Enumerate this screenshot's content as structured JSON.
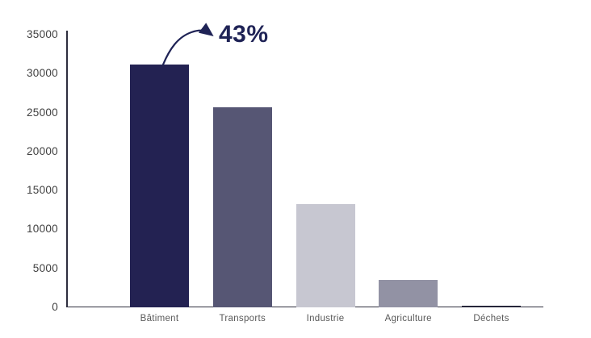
{
  "chart_data": {
    "type": "bar",
    "title": "",
    "xlabel": "",
    "ylabel": "",
    "categories": [
      "Bâtiment",
      "Transports",
      "Industrie",
      "Agriculture",
      "Déchets"
    ],
    "values": [
      31200,
      25700,
      13300,
      3500,
      250
    ],
    "bar_colors": [
      "#232252",
      "#565674",
      "#c7c7d1",
      "#9292a4",
      "#26263a"
    ],
    "ylim": [
      0,
      35000
    ],
    "yticks": [
      0,
      5000,
      10000,
      15000,
      20000,
      25000,
      30000,
      35000
    ],
    "grid": false,
    "legend": false,
    "annotation": {
      "text": "43%",
      "target_category": "Bâtiment",
      "style": "curved-arrow-from-bar-top"
    },
    "colors": {
      "annotation": "#1f2356",
      "axis": "#2e2e3e",
      "tick_labels": "#404040",
      "category_labels": "#595959",
      "background": "#ffffff"
    }
  }
}
